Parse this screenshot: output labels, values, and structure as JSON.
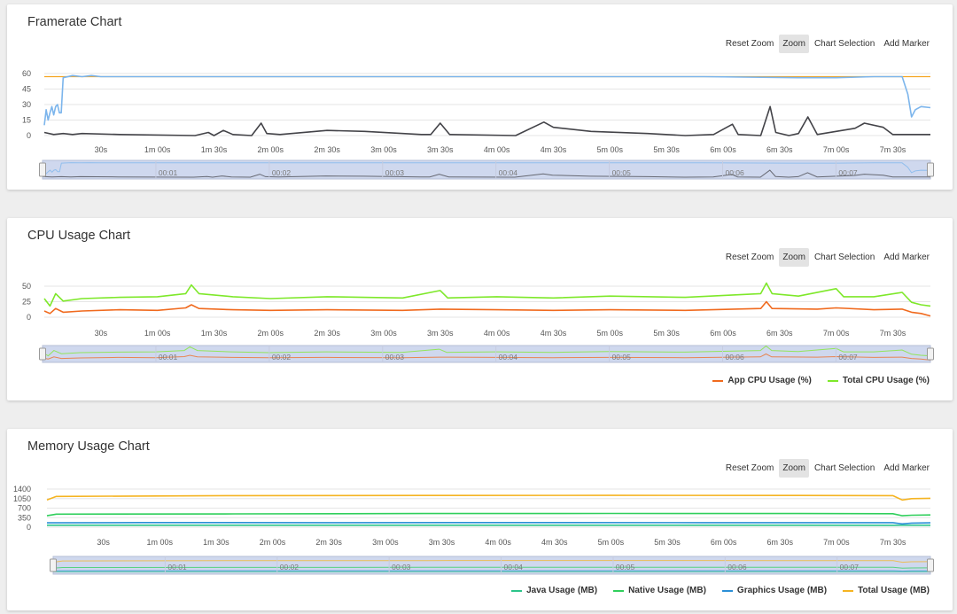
{
  "toolbar": {
    "reset_zoom": "Reset Zoom",
    "zoom": "Zoom",
    "chart_selection": "Chart Selection",
    "add_marker": "Add Marker"
  },
  "time_ticks": [
    "30s",
    "1m 00s",
    "1m 30s",
    "2m 00s",
    "2m 30s",
    "3m 00s",
    "3m 30s",
    "4m 00s",
    "4m 30s",
    "5m 00s",
    "5m 30s",
    "6m 00s",
    "6m 30s",
    "7m 00s",
    "7m 30s"
  ],
  "navigator_ticks": [
    "00:01",
    "00:02",
    "00:03",
    "00:04",
    "00:05",
    "00:06",
    "00:07"
  ],
  "colors": {
    "framerate": "#7cb5ec",
    "framerate_limit": "#f5a623",
    "dark_series": "#434348",
    "app_cpu": "#f06a1e",
    "total_cpu": "#7ee82a",
    "java": "#2bc48a",
    "native": "#30cf5c",
    "graphics": "#2b8fd6",
    "total_mem": "#f5b422",
    "navigator_fill": "#cfd8ee"
  },
  "chart_data": [
    {
      "id": "framerate",
      "type": "line",
      "title": "Framerate Chart",
      "xlabel": "",
      "ylabel": "",
      "x_range_seconds": [
        0,
        470
      ],
      "ylim": [
        0,
        60
      ],
      "yticks": [
        0,
        15,
        30,
        45,
        60
      ],
      "plot_lines": [
        {
          "value": 57,
          "color": "#f5a623"
        }
      ],
      "series": [
        {
          "color": "#7cb5ec",
          "points": [
            [
              0,
              10
            ],
            [
              1,
              25
            ],
            [
              2,
              15
            ],
            [
              3,
              22
            ],
            [
              4,
              28
            ],
            [
              5,
              20
            ],
            [
              6,
              28
            ],
            [
              7,
              30
            ],
            [
              8,
              22
            ],
            [
              9,
              22
            ],
            [
              10,
              56
            ],
            [
              15,
              58
            ],
            [
              20,
              57
            ],
            [
              25,
              58
            ],
            [
              30,
              57
            ],
            [
              50,
              57
            ],
            [
              100,
              57
            ],
            [
              150,
              57
            ],
            [
              200,
              57
            ],
            [
              250,
              57
            ],
            [
              300,
              57
            ],
            [
              350,
              57
            ],
            [
              400,
              56
            ],
            [
              420,
              56
            ],
            [
              440,
              57
            ],
            [
              455,
              57
            ],
            [
              458,
              40
            ],
            [
              460,
              18
            ],
            [
              462,
              25
            ],
            [
              465,
              28
            ],
            [
              470,
              27
            ]
          ]
        },
        {
          "color": "#434348",
          "points": [
            [
              0,
              3
            ],
            [
              5,
              1
            ],
            [
              10,
              2
            ],
            [
              15,
              1
            ],
            [
              20,
              2
            ],
            [
              40,
              1
            ],
            [
              80,
              0
            ],
            [
              87,
              3
            ],
            [
              90,
              0
            ],
            [
              95,
              5
            ],
            [
              100,
              1
            ],
            [
              110,
              0
            ],
            [
              115,
              12
            ],
            [
              118,
              2
            ],
            [
              125,
              1
            ],
            [
              150,
              5
            ],
            [
              170,
              4
            ],
            [
              200,
              1
            ],
            [
              205,
              1
            ],
            [
              210,
              12
            ],
            [
              215,
              1
            ],
            [
              250,
              0
            ],
            [
              265,
              13
            ],
            [
              270,
              8
            ],
            [
              290,
              4
            ],
            [
              320,
              2
            ],
            [
              340,
              0
            ],
            [
              355,
              1
            ],
            [
              365,
              11
            ],
            [
              368,
              1
            ],
            [
              380,
              0
            ],
            [
              385,
              28
            ],
            [
              388,
              3
            ],
            [
              395,
              0
            ],
            [
              400,
              2
            ],
            [
              405,
              18
            ],
            [
              410,
              1
            ],
            [
              430,
              7
            ],
            [
              435,
              12
            ],
            [
              445,
              8
            ],
            [
              450,
              1
            ],
            [
              470,
              1
            ]
          ]
        }
      ]
    },
    {
      "id": "cpu",
      "type": "line",
      "title": "CPU Usage Chart",
      "xlabel": "",
      "ylabel": "",
      "x_range_seconds": [
        0,
        470
      ],
      "ylim": [
        0,
        50
      ],
      "yticks": [
        0,
        25,
        50
      ],
      "legend_position": "bottom-right",
      "series": [
        {
          "name": "App CPU Usage (%)",
          "color": "#f06a1e",
          "points": [
            [
              0,
              10
            ],
            [
              3,
              6
            ],
            [
              6,
              14
            ],
            [
              10,
              8
            ],
            [
              20,
              10
            ],
            [
              40,
              12
            ],
            [
              60,
              11
            ],
            [
              75,
              15
            ],
            [
              78,
              20
            ],
            [
              82,
              14
            ],
            [
              100,
              12
            ],
            [
              120,
              11
            ],
            [
              150,
              12
            ],
            [
              190,
              11
            ],
            [
              210,
              13
            ],
            [
              240,
              12
            ],
            [
              270,
              11
            ],
            [
              300,
              12
            ],
            [
              340,
              11
            ],
            [
              380,
              14
            ],
            [
              383,
              25
            ],
            [
              386,
              14
            ],
            [
              410,
              13
            ],
            [
              420,
              15
            ],
            [
              440,
              12
            ],
            [
              455,
              13
            ],
            [
              460,
              8
            ],
            [
              465,
              6
            ],
            [
              470,
              2
            ]
          ]
        },
        {
          "name": "Total CPU Usage (%)",
          "color": "#7ee82a",
          "points": [
            [
              0,
              30
            ],
            [
              3,
              18
            ],
            [
              6,
              38
            ],
            [
              10,
              26
            ],
            [
              20,
              30
            ],
            [
              40,
              32
            ],
            [
              60,
              33
            ],
            [
              75,
              38
            ],
            [
              78,
              52
            ],
            [
              82,
              38
            ],
            [
              100,
              33
            ],
            [
              120,
              30
            ],
            [
              150,
              33
            ],
            [
              190,
              31
            ],
            [
              210,
              43
            ],
            [
              214,
              31
            ],
            [
              240,
              33
            ],
            [
              270,
              31
            ],
            [
              300,
              34
            ],
            [
              340,
              32
            ],
            [
              380,
              38
            ],
            [
              383,
              55
            ],
            [
              386,
              38
            ],
            [
              400,
              34
            ],
            [
              420,
              46
            ],
            [
              424,
              33
            ],
            [
              440,
              33
            ],
            [
              455,
              40
            ],
            [
              460,
              24
            ],
            [
              465,
              20
            ],
            [
              470,
              18
            ]
          ]
        }
      ]
    },
    {
      "id": "memory",
      "type": "line",
      "title": "Memory Usage Chart",
      "xlabel": "",
      "ylabel": "",
      "x_range_seconds": [
        0,
        470
      ],
      "ylim": [
        0,
        1400
      ],
      "yticks": [
        0,
        350,
        700,
        1050,
        1400
      ],
      "legend_position": "bottom-right",
      "series": [
        {
          "name": "Java Usage (MB)",
          "color": "#2bc48a",
          "points": [
            [
              0,
              70
            ],
            [
              100,
              70
            ],
            [
              200,
              72
            ],
            [
              300,
              72
            ],
            [
              400,
              70
            ],
            [
              450,
              68
            ],
            [
              470,
              70
            ]
          ]
        },
        {
          "name": "Native Usage (MB)",
          "color": "#30cf5c",
          "points": [
            [
              0,
              420
            ],
            [
              5,
              480
            ],
            [
              100,
              490
            ],
            [
              200,
              500
            ],
            [
              300,
              505
            ],
            [
              400,
              500
            ],
            [
              450,
              495
            ],
            [
              455,
              420
            ],
            [
              460,
              440
            ],
            [
              470,
              450
            ]
          ]
        },
        {
          "name": "Graphics Usage (MB)",
          "color": "#2b8fd6",
          "points": [
            [
              0,
              160
            ],
            [
              50,
              170
            ],
            [
              150,
              165
            ],
            [
              250,
              170
            ],
            [
              350,
              165
            ],
            [
              450,
              165
            ],
            [
              455,
              120
            ],
            [
              460,
              150
            ],
            [
              470,
              160
            ]
          ]
        },
        {
          "name": "Total Usage (MB)",
          "color": "#f5b422",
          "points": [
            [
              0,
              1000
            ],
            [
              5,
              1130
            ],
            [
              100,
              1160
            ],
            [
              200,
              1165
            ],
            [
              300,
              1170
            ],
            [
              400,
              1165
            ],
            [
              450,
              1160
            ],
            [
              455,
              1000
            ],
            [
              460,
              1050
            ],
            [
              470,
              1060
            ]
          ]
        }
      ]
    }
  ]
}
